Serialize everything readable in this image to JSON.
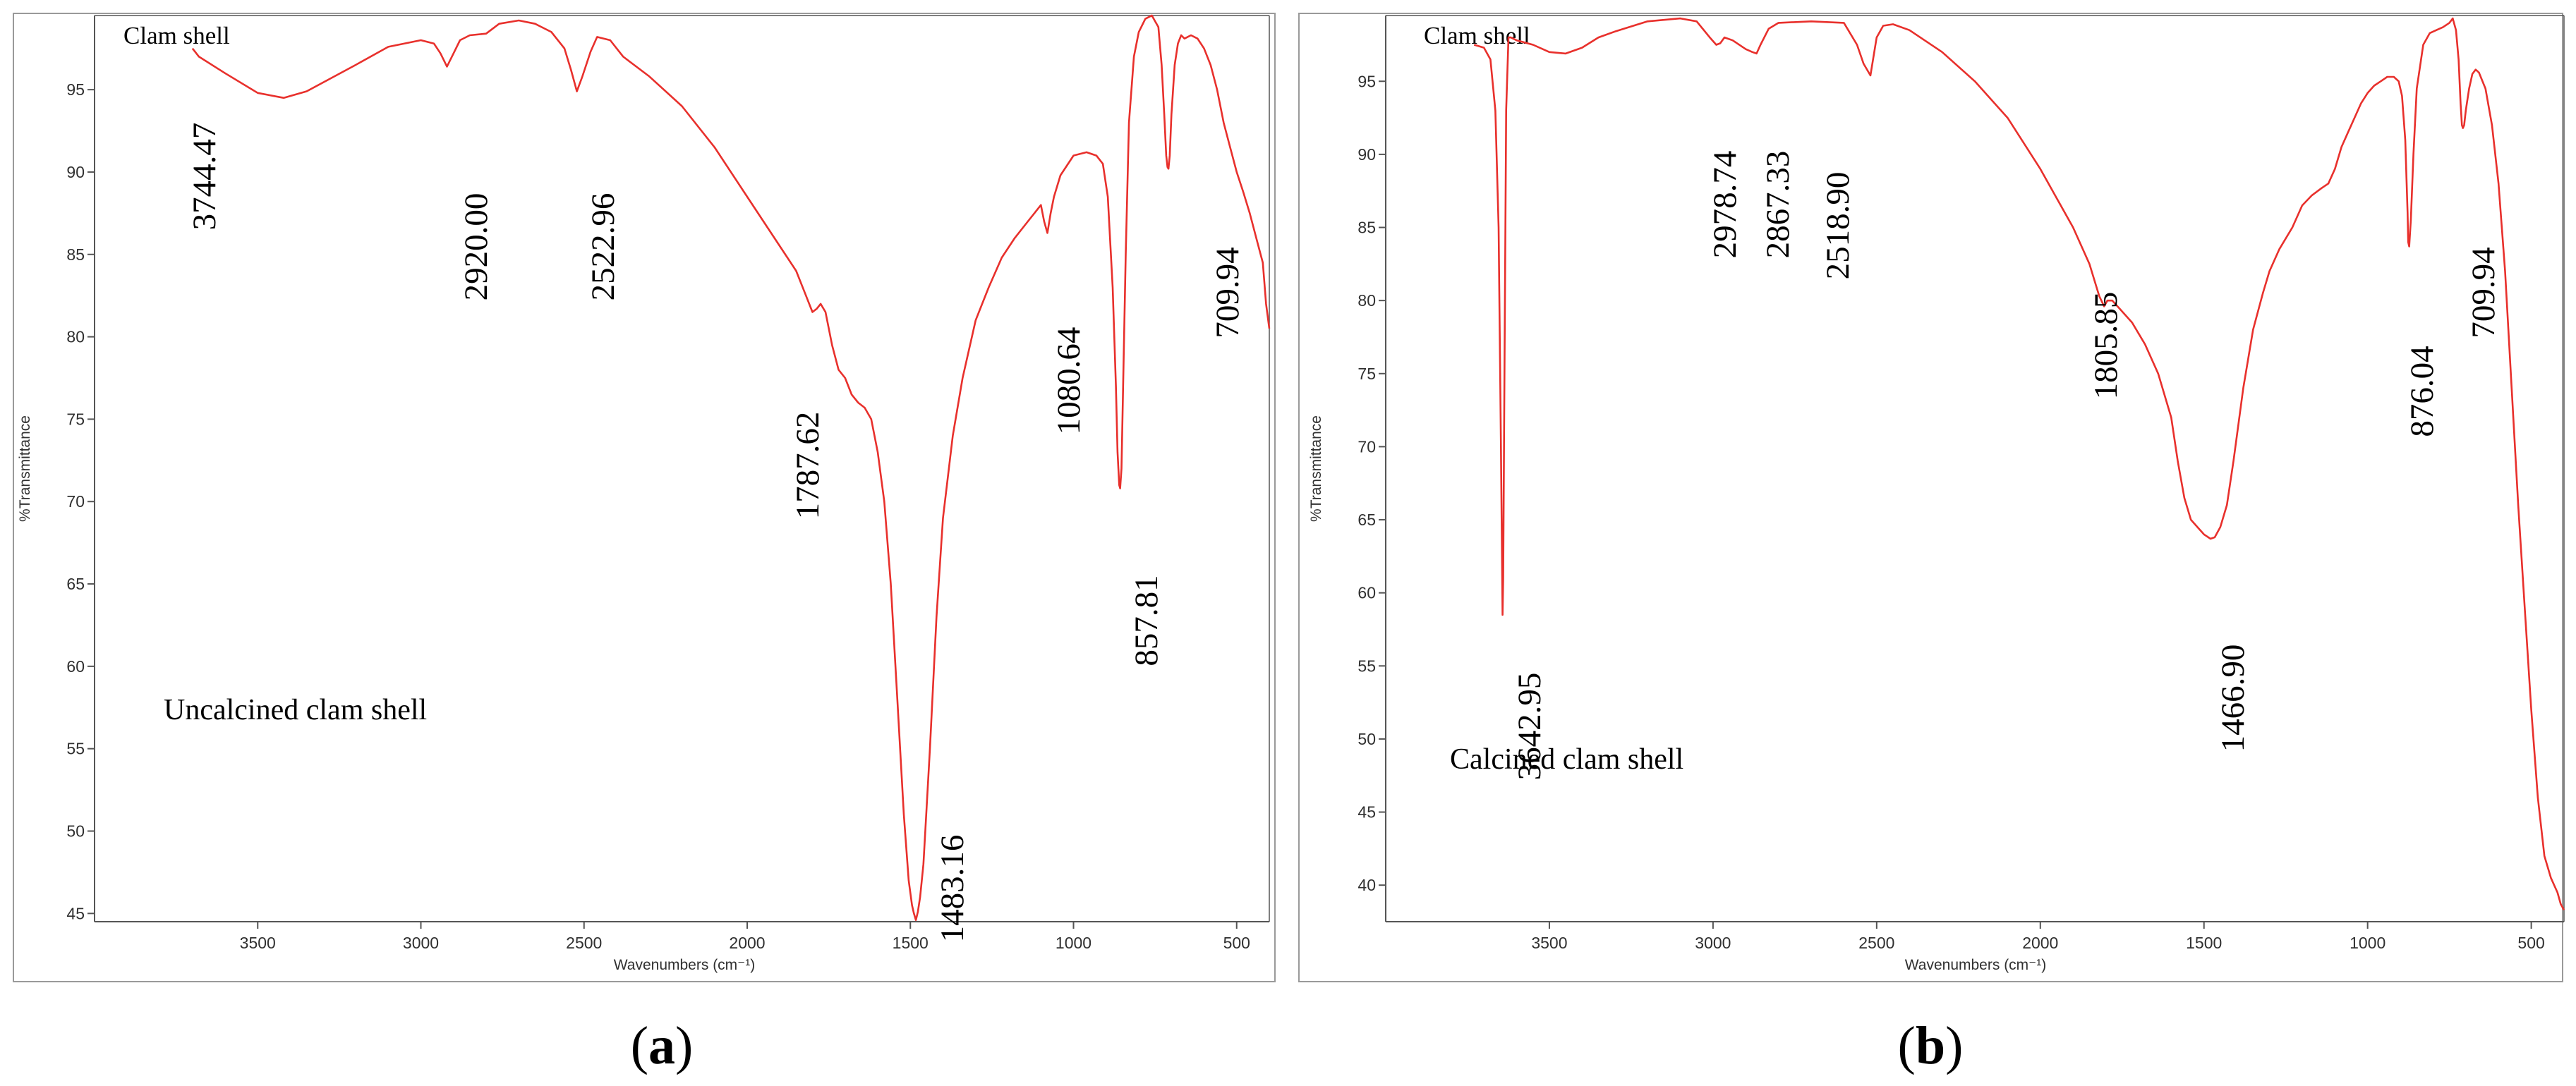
{
  "figure": {
    "captions": [
      {
        "open": "(",
        "letter": "a",
        "close": ")"
      },
      {
        "open": "(",
        "letter": "b",
        "close": ")"
      }
    ]
  },
  "chart_data": [
    {
      "type": "line",
      "panel": "a",
      "title": "Clam shell",
      "annotation": "Uncalcined clam shell",
      "xlabel": "Wavenumbers (cm⁻¹)",
      "ylabel": "%Transmittance",
      "xlim": [
        4000,
        400
      ],
      "x_reversed": true,
      "ylim": [
        44.5,
        99.5
      ],
      "xticks": [
        3500,
        3000,
        2500,
        2000,
        1500,
        1000,
        500
      ],
      "yticks": [
        45,
        50,
        55,
        60,
        65,
        70,
        75,
        80,
        85,
        90,
        95
      ],
      "grid": false,
      "line_color": "#e8302c",
      "series": [
        {
          "x": [
            3700,
            3680,
            3600,
            3500,
            3420,
            3350,
            3200,
            3100,
            3000,
            2960,
            2940,
            2920,
            2900,
            2880,
            2850,
            2800,
            2760,
            2700,
            2650,
            2600,
            2560,
            2540,
            2522,
            2505,
            2480,
            2460,
            2420,
            2380,
            2300,
            2200,
            2100,
            2000,
            1950,
            1900,
            1850,
            1820,
            1800,
            1787,
            1775,
            1760,
            1740,
            1720,
            1700,
            1680,
            1660,
            1640,
            1620,
            1600,
            1580,
            1560,
            1540,
            1520,
            1505,
            1495,
            1489,
            1483,
            1477,
            1470,
            1460,
            1440,
            1420,
            1400,
            1370,
            1340,
            1300,
            1260,
            1220,
            1180,
            1140,
            1120,
            1100,
            1090,
            1080,
            1070,
            1060,
            1040,
            1000,
            960,
            930,
            910,
            895,
            880,
            870,
            865,
            860,
            857,
            853,
            848,
            840,
            830,
            815,
            800,
            780,
            760,
            740,
            730,
            722,
            716,
            712,
            709,
            705,
            700,
            690,
            680,
            670,
            660,
            640,
            620,
            600,
            580,
            560,
            540,
            520,
            500,
            480,
            460,
            440,
            420,
            410,
            400
          ],
          "y": [
            97.5,
            97.0,
            96.0,
            94.8,
            94.5,
            94.9,
            96.5,
            97.6,
            98.0,
            97.8,
            97.2,
            96.4,
            97.2,
            98.0,
            98.3,
            98.4,
            99.0,
            99.2,
            99.0,
            98.5,
            97.5,
            96.2,
            94.9,
            95.8,
            97.3,
            98.2,
            98.0,
            97.0,
            95.8,
            94.0,
            91.5,
            88.5,
            87.0,
            85.5,
            84.0,
            82.5,
            81.5,
            81.7,
            82.0,
            81.5,
            79.5,
            78.0,
            77.5,
            76.5,
            76.0,
            75.7,
            75.0,
            73.0,
            70.0,
            65.0,
            58.0,
            51.0,
            47.0,
            45.5,
            45.0,
            44.6,
            45.1,
            46.0,
            48.0,
            55.0,
            63.0,
            69.0,
            74.0,
            77.5,
            81.0,
            83.0,
            84.8,
            86.0,
            87.0,
            87.5,
            88.0,
            87.0,
            86.3,
            87.5,
            88.5,
            89.8,
            91.0,
            91.2,
            91.0,
            90.5,
            88.5,
            83.0,
            77.0,
            73.0,
            71.0,
            70.8,
            72.0,
            77.0,
            85.0,
            93.0,
            97.0,
            98.5,
            99.3,
            99.5,
            98.8,
            96.5,
            93.5,
            91.0,
            90.3,
            90.2,
            91.0,
            93.5,
            96.5,
            97.8,
            98.3,
            98.1,
            98.3,
            98.1,
            97.5,
            96.5,
            95.0,
            93.0,
            91.5,
            90.0,
            88.8,
            87.5,
            86.0,
            84.5,
            82.0,
            80.5
          ]
        }
      ],
      "peak_labels": [
        {
          "text": "3744.47",
          "x": 3744.47,
          "y": 97.0
        },
        {
          "text": "2920.00",
          "x": 2920.0,
          "y": 96.4
        },
        {
          "text": "2522.96",
          "x": 2522.96,
          "y": 94.9
        },
        {
          "text": "1787.62",
          "x": 1787.62,
          "y": 81.7
        },
        {
          "text": "1483.16",
          "x": 1483.16,
          "y": 44.6
        },
        {
          "text": "1080.64",
          "x": 1080.64,
          "y": 86.3
        },
        {
          "text": "857.81",
          "x": 857.81,
          "y": 70.8
        },
        {
          "text": "709.94",
          "x": 709.94,
          "y": 90.2
        }
      ]
    },
    {
      "type": "line",
      "panel": "b",
      "title": "Clam shell",
      "annotation": "Calcined clam shell",
      "xlabel": "Wavenumbers (cm⁻¹)",
      "ylabel": "%Transmittance",
      "xlim": [
        4000,
        400
      ],
      "x_reversed": true,
      "ylim": [
        37.5,
        99.5
      ],
      "xticks": [
        3500,
        3000,
        2500,
        2000,
        1500,
        1000,
        500
      ],
      "yticks": [
        40,
        45,
        50,
        55,
        60,
        65,
        70,
        75,
        80,
        85,
        90,
        95
      ],
      "grid": false,
      "line_color": "#e8302c",
      "series": [
        {
          "x": [
            3730,
            3700,
            3680,
            3665,
            3655,
            3648,
            3645,
            3643,
            3641,
            3638,
            3632,
            3625,
            3618,
            3600,
            3550,
            3500,
            3450,
            3400,
            3350,
            3300,
            3200,
            3100,
            3050,
            3010,
            2990,
            2978,
            2965,
            2940,
            2900,
            2880,
            2867,
            2855,
            2830,
            2800,
            2700,
            2600,
            2560,
            2540,
            2519,
            2500,
            2480,
            2450,
            2400,
            2300,
            2200,
            2100,
            2000,
            1950,
            1900,
            1850,
            1820,
            1805,
            1795,
            1780,
            1760,
            1720,
            1680,
            1640,
            1600,
            1580,
            1560,
            1540,
            1520,
            1500,
            1480,
            1467,
            1450,
            1430,
            1410,
            1380,
            1350,
            1320,
            1300,
            1270,
            1230,
            1200,
            1170,
            1140,
            1120,
            1100,
            1080,
            1060,
            1040,
            1020,
            1000,
            980,
            960,
            940,
            920,
            905,
            895,
            885,
            878,
            876,
            873,
            868,
            860,
            850,
            830,
            810,
            790,
            770,
            750,
            740,
            730,
            722,
            716,
            712,
            709,
            705,
            700,
            690,
            680,
            670,
            660,
            640,
            620,
            600,
            580,
            560,
            540,
            520,
            500,
            480,
            460,
            440,
            420,
            410,
            400
          ],
          "y": [
            97.5,
            97.3,
            96.5,
            93.0,
            85.0,
            70.0,
            63.0,
            58.5,
            61.0,
            72.0,
            93.0,
            98.0,
            98.0,
            97.8,
            97.5,
            97.0,
            96.9,
            97.3,
            98.0,
            98.4,
            99.1,
            99.3,
            99.1,
            98.0,
            97.5,
            97.6,
            98.0,
            97.8,
            97.2,
            97.0,
            96.9,
            97.5,
            98.6,
            99.0,
            99.1,
            99.0,
            97.5,
            96.2,
            95.4,
            98.0,
            98.8,
            98.9,
            98.5,
            97.0,
            95.0,
            92.5,
            89.0,
            87.0,
            85.0,
            82.5,
            80.3,
            79.6,
            80.0,
            80.0,
            79.5,
            78.5,
            77.0,
            75.0,
            72.0,
            69.0,
            66.5,
            65.0,
            64.5,
            64.0,
            63.7,
            63.8,
            64.5,
            66.0,
            69.0,
            74.0,
            78.0,
            80.5,
            82.0,
            83.5,
            85.0,
            86.5,
            87.2,
            87.7,
            88.0,
            89.0,
            90.5,
            91.5,
            92.5,
            93.5,
            94.2,
            94.7,
            95.0,
            95.3,
            95.3,
            95.0,
            94.0,
            91.0,
            86.0,
            84.0,
            83.7,
            85.5,
            90.0,
            94.5,
            97.5,
            98.3,
            98.5,
            98.7,
            99.0,
            99.3,
            98.5,
            96.5,
            93.5,
            92.0,
            91.8,
            92.0,
            93.0,
            94.5,
            95.5,
            95.8,
            95.6,
            94.5,
            92.0,
            88.0,
            82.0,
            74.0,
            66.0,
            59.0,
            52.0,
            46.0,
            42.0,
            40.5,
            39.5,
            38.7,
            38.3
          ]
        }
      ],
      "peak_labels": [
        {
          "text": "3642.95",
          "x": 3642.95,
          "y": 58.5
        },
        {
          "text": "2978.74",
          "x": 2978.74,
          "y": 97.6
        },
        {
          "text": "2867.33",
          "x": 2867.33,
          "y": 96.9
        },
        {
          "text": "2518.90",
          "x": 2518.9,
          "y": 95.4
        },
        {
          "text": "1805.85",
          "x": 1805.85,
          "y": 79.6
        },
        {
          "text": "1466.90",
          "x": 1466.9,
          "y": 63.8
        },
        {
          "text": "876.04",
          "x": 876.04,
          "y": 83.7
        },
        {
          "text": "709.94",
          "x": 709.94,
          "y": 91.8
        }
      ]
    }
  ]
}
